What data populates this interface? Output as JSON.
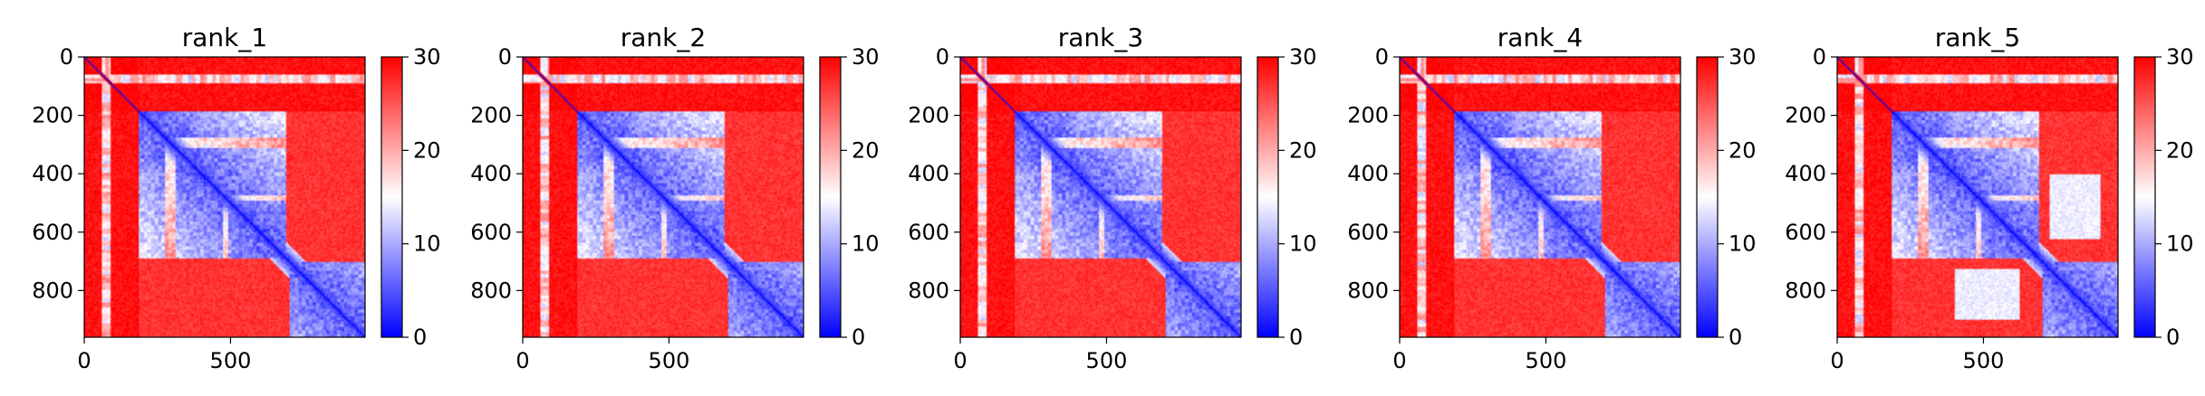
{
  "chart_data": [
    {
      "type": "heatmap",
      "title": "rank_1",
      "xlim": [
        0,
        960
      ],
      "ylim": [
        960,
        0
      ],
      "xticks": [
        0,
        500
      ],
      "yticks": [
        0,
        200,
        400,
        600,
        800
      ],
      "colorbar": {
        "min": 0,
        "max": 30,
        "ticks": [
          0,
          10,
          20,
          30
        ],
        "colormap": "bwr"
      },
      "variant": 0
    },
    {
      "type": "heatmap",
      "title": "rank_2",
      "xlim": [
        0,
        960
      ],
      "ylim": [
        960,
        0
      ],
      "xticks": [
        0,
        500
      ],
      "yticks": [
        0,
        200,
        400,
        600,
        800
      ],
      "colorbar": {
        "min": 0,
        "max": 30,
        "ticks": [
          0,
          10,
          20,
          30
        ],
        "colormap": "bwr"
      },
      "variant": 1
    },
    {
      "type": "heatmap",
      "title": "rank_3",
      "xlim": [
        0,
        960
      ],
      "ylim": [
        960,
        0
      ],
      "xticks": [
        0,
        500
      ],
      "yticks": [
        0,
        200,
        400,
        600,
        800
      ],
      "colorbar": {
        "min": 0,
        "max": 30,
        "ticks": [
          0,
          10,
          20,
          30
        ],
        "colormap": "bwr"
      },
      "variant": 2
    },
    {
      "type": "heatmap",
      "title": "rank_4",
      "xlim": [
        0,
        960
      ],
      "ylim": [
        960,
        0
      ],
      "xticks": [
        0,
        500
      ],
      "yticks": [
        0,
        200,
        400,
        600,
        800
      ],
      "colorbar": {
        "min": 0,
        "max": 30,
        "ticks": [
          0,
          10,
          20,
          30
        ],
        "colormap": "bwr"
      },
      "variant": 3
    },
    {
      "type": "heatmap",
      "title": "rank_5",
      "xlim": [
        0,
        960
      ],
      "ylim": [
        960,
        0
      ],
      "xticks": [
        0,
        500
      ],
      "yticks": [
        0,
        200,
        400,
        600,
        800
      ],
      "colorbar": {
        "min": 0,
        "max": 30,
        "ticks": [
          0,
          10,
          20,
          30
        ],
        "colormap": "bwr"
      },
      "variant": 4
    }
  ]
}
